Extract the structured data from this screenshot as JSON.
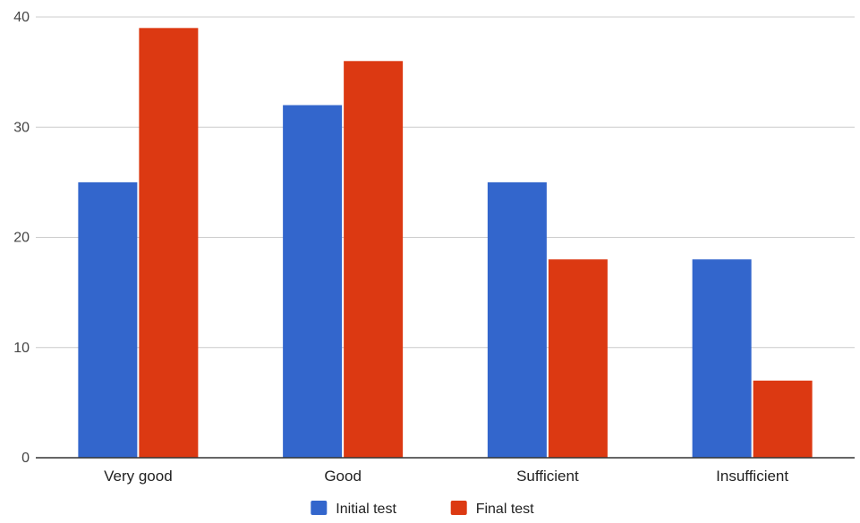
{
  "chart_data": {
    "type": "bar",
    "categories": [
      "Very good",
      "Good",
      "Sufficient",
      "Insufficient"
    ],
    "series": [
      {
        "name": "Initial test",
        "values": [
          25,
          32,
          25,
          18
        ],
        "color": "#3366cc"
      },
      {
        "name": "Final test",
        "values": [
          39,
          36,
          18,
          7
        ],
        "color": "#dc3912"
      }
    ],
    "ylim": [
      0,
      40
    ],
    "yticks": [
      0,
      10,
      20,
      30,
      40
    ],
    "grid": true,
    "legend_position": "bottom-center"
  }
}
